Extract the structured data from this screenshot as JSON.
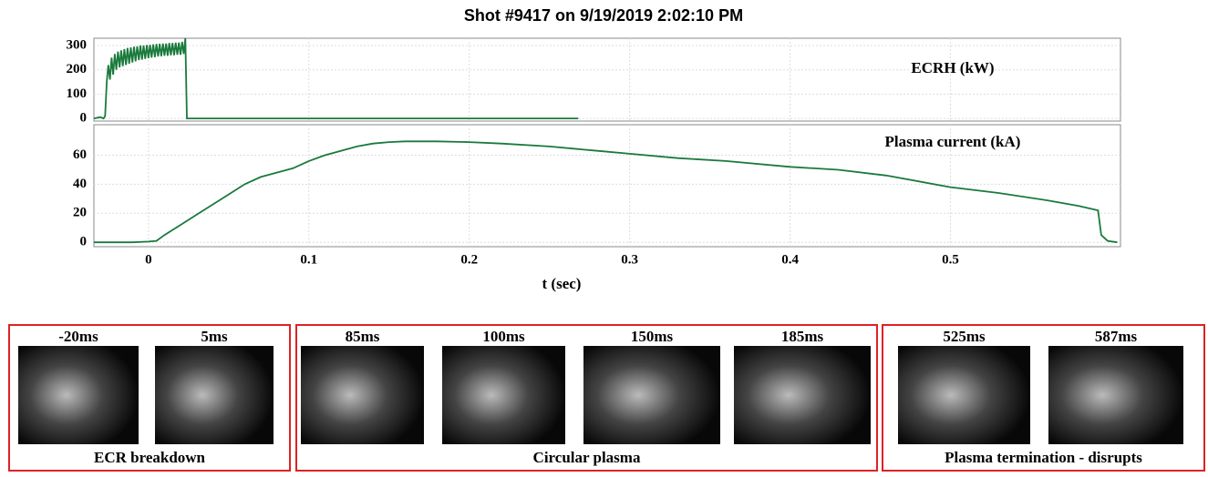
{
  "title": "Shot #9417 on 9/19/2019 2:02:10 PM",
  "chart_data": [
    {
      "type": "line",
      "label": "ECRH (kW)",
      "x": [
        -0.034,
        -0.03,
        -0.028,
        -0.027,
        -0.026,
        -0.025,
        -0.024,
        -0.023,
        -0.022,
        -0.021,
        -0.02,
        -0.019,
        -0.018,
        -0.017,
        -0.016,
        -0.015,
        -0.014,
        -0.013,
        -0.012,
        -0.011,
        -0.01,
        -0.009,
        -0.008,
        -0.007,
        -0.006,
        -0.005,
        -0.004,
        -0.003,
        -0.002,
        -0.001,
        0,
        0.001,
        0.002,
        0.003,
        0.004,
        0.005,
        0.006,
        0.007,
        0.008,
        0.009,
        0.01,
        0.011,
        0.012,
        0.013,
        0.014,
        0.015,
        0.016,
        0.017,
        0.018,
        0.019,
        0.02,
        0.021,
        0.022,
        0.023,
        0.024,
        0.268
      ],
      "series": [
        {
          "color": "#1a7a3c",
          "values": [
            0,
            5,
            0,
            10,
            150,
            220,
            160,
            250,
            180,
            265,
            200,
            275,
            210,
            280,
            215,
            285,
            220,
            290,
            225,
            292,
            230,
            295,
            235,
            297,
            240,
            300,
            242,
            300,
            245,
            302,
            248,
            303,
            250,
            305,
            252,
            306,
            255,
            307,
            256,
            308,
            258,
            308,
            258,
            310,
            260,
            310,
            260,
            312,
            262,
            312,
            262,
            315,
            265,
            330,
            0,
            0
          ]
        }
      ],
      "xlim": [
        -0.034,
        0.606
      ],
      "ylim": [
        -11,
        330
      ],
      "xticks": [
        0,
        0.1,
        0.2,
        0.3,
        0.4,
        0.5
      ],
      "yticks": [
        0,
        100,
        200,
        300
      ],
      "grid": true
    },
    {
      "type": "line",
      "label": "Plasma current (kA)",
      "x_label": "t (sec)",
      "x": [
        -0.034,
        -0.01,
        0,
        0.005,
        0.01,
        0.02,
        0.03,
        0.04,
        0.05,
        0.06,
        0.07,
        0.08,
        0.09,
        0.1,
        0.11,
        0.12,
        0.13,
        0.14,
        0.15,
        0.16,
        0.18,
        0.2,
        0.22,
        0.25,
        0.28,
        0.3,
        0.33,
        0.36,
        0.4,
        0.43,
        0.46,
        0.5,
        0.53,
        0.56,
        0.58,
        0.592,
        0.594,
        0.598,
        0.604
      ],
      "series": [
        {
          "color": "#1a7a3c",
          "values": [
            0,
            0,
            0.5,
            1,
            5,
            12,
            19,
            26,
            33,
            40,
            45,
            48,
            51,
            56,
            60,
            63,
            66,
            68,
            69,
            69.5,
            69.5,
            69,
            68,
            66,
            63,
            61,
            58,
            56,
            52,
            50,
            46,
            38,
            34,
            29,
            25,
            22,
            5,
            1,
            0
          ]
        }
      ],
      "xlim": [
        -0.034,
        0.606
      ],
      "ylim": [
        -3,
        81
      ],
      "xticks": [
        0,
        0.1,
        0.2,
        0.3,
        0.4,
        0.5
      ],
      "yticks": [
        0,
        20,
        40,
        60
      ],
      "grid": true
    }
  ],
  "image_groups": [
    {
      "caption": "ECR breakdown",
      "frames": [
        "-20ms",
        "5ms"
      ]
    },
    {
      "caption": "Circular plasma",
      "frames": [
        "85ms",
        "100ms",
        "150ms",
        "185ms"
      ]
    },
    {
      "caption": "Plasma termination - disrupts",
      "frames": [
        "525ms",
        "587ms"
      ]
    }
  ]
}
